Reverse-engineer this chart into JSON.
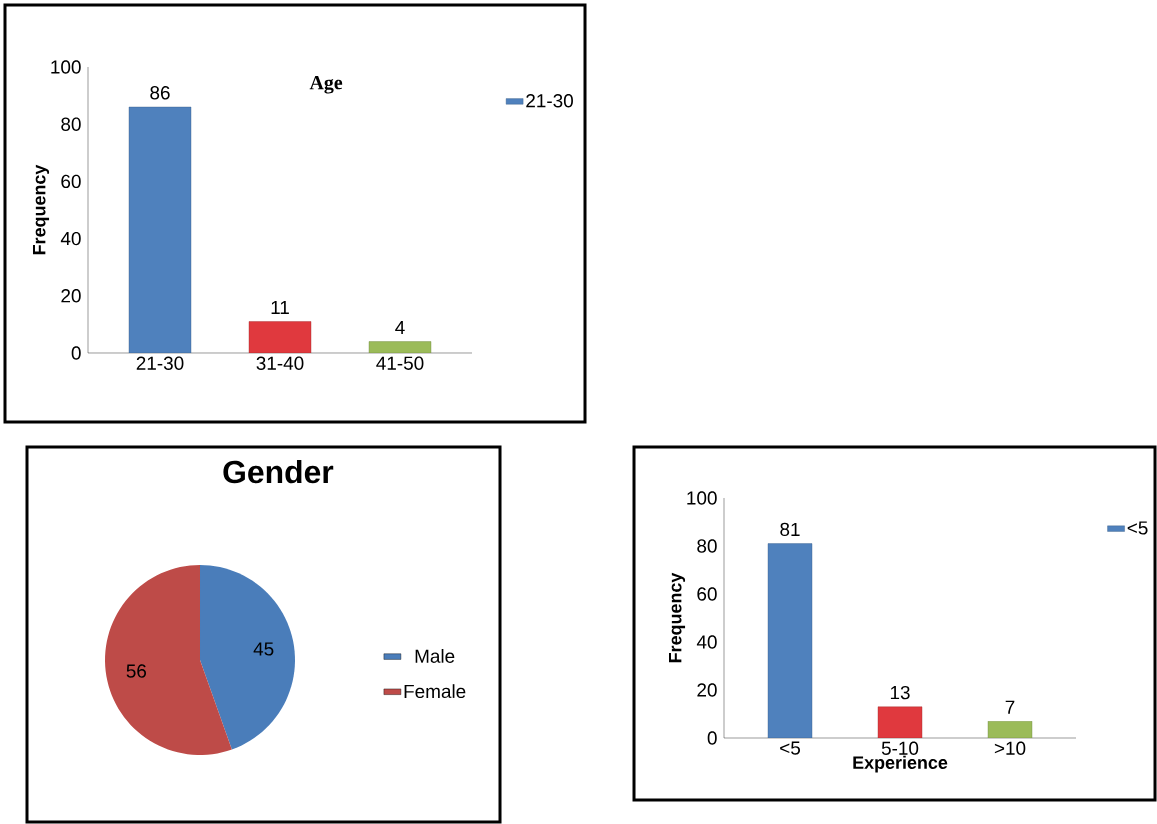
{
  "chart_data": [
    {
      "type": "bar",
      "title": "Age",
      "ylabel": "Frequency",
      "categories": [
        "21-30",
        "31-40",
        "41-50"
      ],
      "series": [
        {
          "name": "21-30",
          "values": [
            86,
            11,
            4
          ]
        }
      ],
      "colors": [
        "#4F81BD",
        "#E0393E",
        "#9BBB59"
      ],
      "ylim": [
        0,
        100
      ],
      "yticks": [
        0,
        20,
        40,
        60,
        80,
        100
      ],
      "data_labels": true,
      "legend": "right"
    },
    {
      "type": "pie",
      "title": "Gender",
      "categories": [
        "Male",
        "Female"
      ],
      "values": [
        45,
        56
      ],
      "colors": [
        "#4A7DBA",
        "#BE4B48"
      ],
      "data_labels": true,
      "legend": "right"
    },
    {
      "type": "bar",
      "xlabel": "Experience",
      "ylabel": "Frequency",
      "categories": [
        "<5",
        "5-10",
        ">10"
      ],
      "series": [
        {
          "name": "<5",
          "values": [
            81,
            13,
            7
          ]
        }
      ],
      "colors": [
        "#4F81BD",
        "#E0393E",
        "#9BBB59"
      ],
      "ylim": [
        0,
        100
      ],
      "yticks": [
        0,
        20,
        40,
        60,
        80,
        100
      ],
      "data_labels": true,
      "legend": "right"
    }
  ]
}
